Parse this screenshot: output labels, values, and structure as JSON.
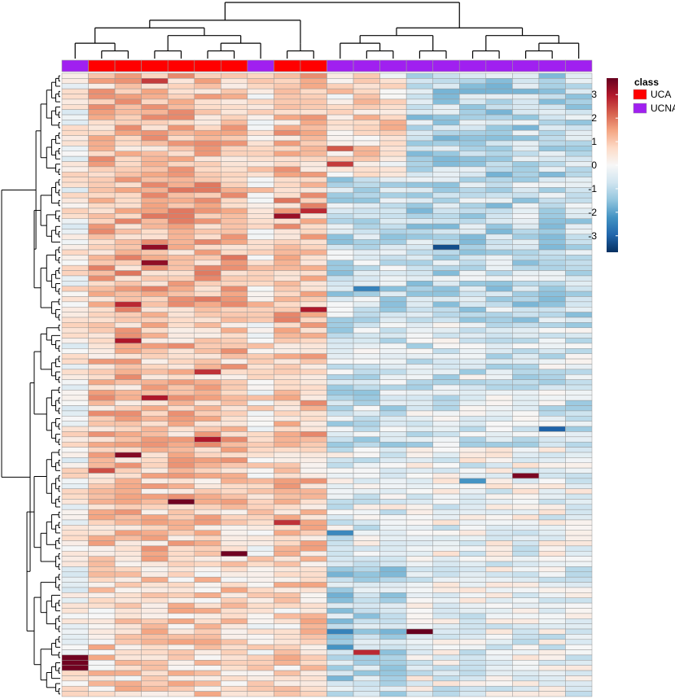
{
  "chart_data": {
    "type": "heatmap",
    "title": "",
    "n_rows": 120,
    "n_cols": 20,
    "column_classes": [
      "UCNA",
      "UCA",
      "UCA",
      "UCA",
      "UCA",
      "UCA",
      "UCA",
      "UCNA",
      "UCA",
      "UCA",
      "UCNA",
      "UCNA",
      "UCNA",
      "UCNA",
      "UCNA",
      "UCNA",
      "UCNA",
      "UCNA",
      "UCNA",
      "UCNA"
    ],
    "color_scale": {
      "ticks": [
        3,
        2,
        1,
        0,
        -1,
        -2,
        -3
      ],
      "tick_labels": [
        "3",
        "2",
        "1",
        "0",
        "-1",
        "-2",
        "-3"
      ],
      "vmin": -3.7,
      "vmax": 3.7,
      "colors": [
        "#053061",
        "#2166ac",
        "#4393c3",
        "#92c5de",
        "#d1e5f0",
        "#f7f7f7",
        "#fddbc7",
        "#f4a582",
        "#d6604d",
        "#b2182b",
        "#67001f"
      ]
    },
    "legend": {
      "title": "class",
      "entries": [
        {
          "label": "UCA",
          "color": "#ff0000"
        },
        {
          "label": "UCNA",
          "color": "#a020f0"
        }
      ]
    },
    "column_dendrogram": "((((c0,(c1,c2)),((c3,c4),((c5,c6),c7))),((c8,c9))),(((c10,(c11,c12)),(c13,c14)),((c15,c16),((c17,c18),c19))))",
    "row_block_bias": [
      {
        "rows": [
          0,
          20
        ],
        "UCA": 1.0,
        "UCNA_first": 0.6,
        "UCNA_rest": -1.0
      },
      {
        "rows": [
          20,
          48
        ],
        "UCA": 1.2,
        "UCNA_first": -0.8,
        "UCNA_rest": -0.9
      },
      {
        "rows": [
          48,
          72
        ],
        "UCA": 1.0,
        "UCNA_first": -0.7,
        "UCNA_rest": -0.6
      },
      {
        "rows": [
          72,
          95
        ],
        "UCA": 0.9,
        "UCNA_first": -0.3,
        "UCNA_rest": -0.2
      },
      {
        "rows": [
          95,
          120
        ],
        "UCA": 0.7,
        "UCNA_first": -1.0,
        "UCNA_rest": -0.3
      }
    ],
    "hotspots": [
      {
        "row": 1,
        "col": 3,
        "value": 2.6
      },
      {
        "row": 14,
        "col": 10,
        "value": 2.3
      },
      {
        "row": 17,
        "col": 10,
        "value": 2.6
      },
      {
        "row": 26,
        "col": 9,
        "value": 2.8
      },
      {
        "row": 27,
        "col": 8,
        "value": 3.2
      },
      {
        "row": 33,
        "col": 3,
        "value": 3.3
      },
      {
        "row": 36,
        "col": 3,
        "value": 3.3
      },
      {
        "row": 38,
        "col": 2,
        "value": 2.0
      },
      {
        "row": 44,
        "col": 2,
        "value": 2.8
      },
      {
        "row": 45,
        "col": 9,
        "value": 3.0
      },
      {
        "row": 51,
        "col": 2,
        "value": 3.0
      },
      {
        "row": 57,
        "col": 5,
        "value": 2.7
      },
      {
        "row": 62,
        "col": 3,
        "value": 3.0
      },
      {
        "row": 70,
        "col": 5,
        "value": 3.0
      },
      {
        "row": 73,
        "col": 2,
        "value": 3.4
      },
      {
        "row": 76,
        "col": 1,
        "value": 2.4
      },
      {
        "row": 77,
        "col": 17,
        "value": 3.5
      },
      {
        "row": 82,
        "col": 4,
        "value": 3.6
      },
      {
        "row": 86,
        "col": 8,
        "value": 2.7
      },
      {
        "row": 92,
        "col": 6,
        "value": 3.6
      },
      {
        "row": 107,
        "col": 13,
        "value": 3.7
      },
      {
        "row": 111,
        "col": 11,
        "value": 2.8
      },
      {
        "row": 112,
        "col": 0,
        "value": 3.6
      },
      {
        "row": 113,
        "col": 0,
        "value": 3.6
      },
      {
        "row": 114,
        "col": 0,
        "value": 3.6
      },
      {
        "row": 68,
        "col": 18,
        "value": -3.0
      },
      {
        "row": 33,
        "col": 14,
        "value": -3.3
      },
      {
        "row": 41,
        "col": 11,
        "value": -2.5
      },
      {
        "row": 88,
        "col": 10,
        "value": -2.4
      },
      {
        "row": 107,
        "col": 10,
        "value": -2.5
      },
      {
        "row": 110,
        "col": 10,
        "value": -2.2
      },
      {
        "row": 78,
        "col": 15,
        "value": -2.2
      }
    ]
  }
}
